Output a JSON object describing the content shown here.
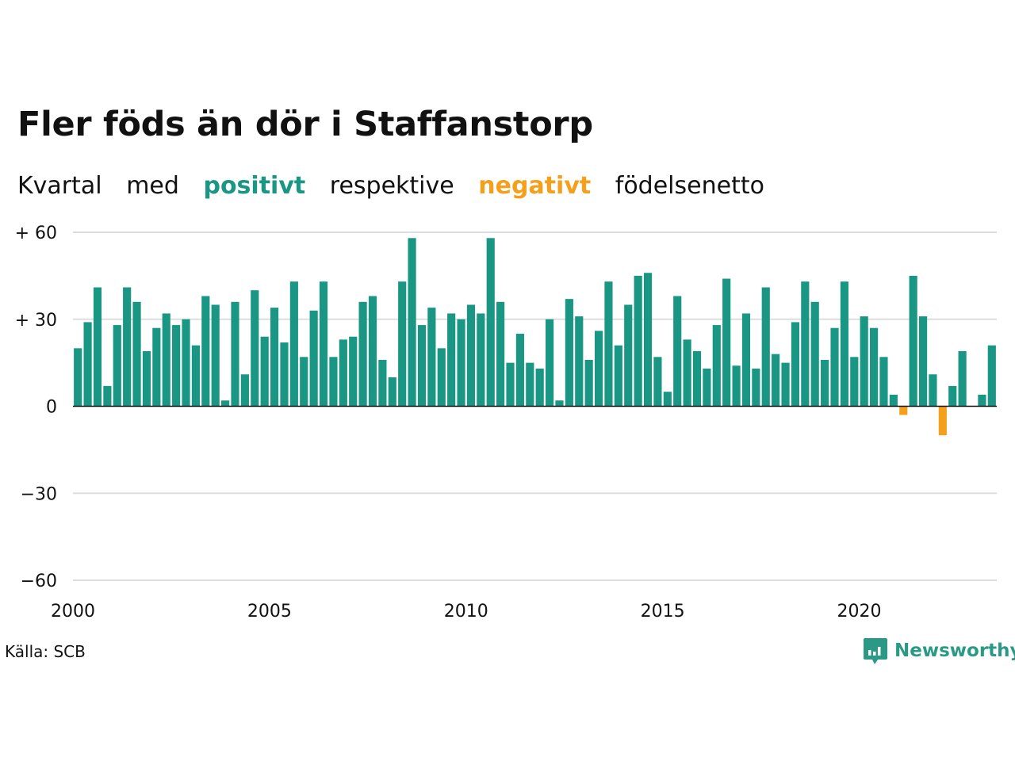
{
  "title": "Fler föds än dör i Staffanstorp",
  "subtitle": {
    "w1": "Kvartal",
    "w2": "med",
    "positive": "positivt",
    "w3": "respektive",
    "negative": "negativt",
    "w4": "födelsenetto"
  },
  "source": "Källa: SCB",
  "brand": "Newsworthy",
  "colors": {
    "positive": "#1a9784",
    "negative": "#f4a01c",
    "grid": "#dddddd",
    "axis": "#111111"
  },
  "chart_data": {
    "type": "bar",
    "ylim": [
      -60,
      60
    ],
    "y_ticks": [
      {
        "value": 60,
        "label": "+ 60"
      },
      {
        "value": 30,
        "label": "+ 30"
      },
      {
        "value": 0,
        "label": "0"
      },
      {
        "value": -30,
        "label": "−30"
      },
      {
        "value": -60,
        "label": "−60"
      }
    ],
    "x_ticks": [
      {
        "value": 2000,
        "label": "2000"
      },
      {
        "value": 2005,
        "label": "2005"
      },
      {
        "value": 2010,
        "label": "2010"
      },
      {
        "value": 2015,
        "label": "2015"
      },
      {
        "value": 2020,
        "label": "2020"
      }
    ],
    "x_start": 2000,
    "values": [
      20,
      29,
      41,
      7,
      28,
      41,
      36,
      19,
      27,
      32,
      28,
      30,
      21,
      38,
      35,
      2,
      36,
      11,
      40,
      24,
      34,
      22,
      43,
      17,
      33,
      43,
      17,
      23,
      24,
      36,
      38,
      16,
      10,
      43,
      58,
      28,
      34,
      20,
      32,
      30,
      35,
      32,
      58,
      36,
      15,
      25,
      15,
      13,
      30,
      2,
      37,
      31,
      16,
      26,
      43,
      21,
      35,
      45,
      46,
      17,
      5,
      38,
      23,
      19,
      13,
      28,
      44,
      14,
      32,
      13,
      41,
      18,
      15,
      29,
      43,
      36,
      16,
      27,
      43,
      17,
      31,
      27,
      17,
      4,
      -3,
      45,
      31,
      11,
      -10,
      7,
      19,
      0,
      4,
      21
    ]
  }
}
